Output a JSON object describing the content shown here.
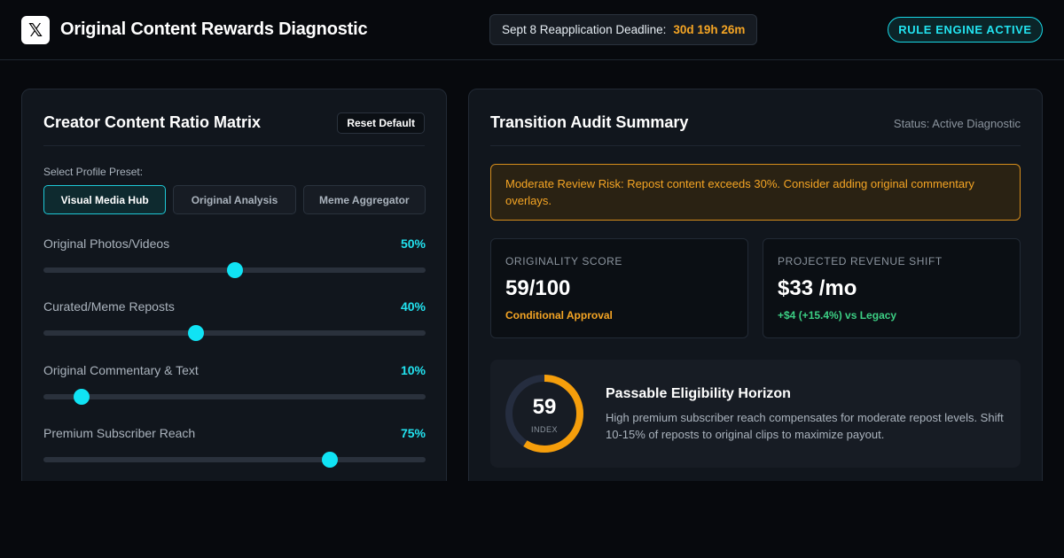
{
  "header": {
    "logo_glyph": "𝕏",
    "title": "Original Content Rewards Diagnostic",
    "deadline_label": "Sept 8 Reapplication Deadline:",
    "deadline_timer": "30d 19h 26m",
    "engine_badge": "RULE ENGINE ACTIVE"
  },
  "matrix": {
    "title": "Creator Content Ratio Matrix",
    "reset_label": "Reset Default",
    "preset_label": "Select Profile Preset:",
    "presets": [
      {
        "label": "Visual Media Hub",
        "active": true
      },
      {
        "label": "Original Analysis",
        "active": false
      },
      {
        "label": "Meme Aggregator",
        "active": false
      }
    ],
    "sliders": [
      {
        "label": "Original Photos/Videos",
        "display": "50%",
        "value": 50
      },
      {
        "label": "Curated/Meme Reposts",
        "display": "40%",
        "value": 40
      },
      {
        "label": "Original Commentary & Text",
        "display": "10%",
        "value": 10
      },
      {
        "label": "Premium Subscriber Reach",
        "display": "75%",
        "value": 75
      }
    ]
  },
  "audit": {
    "title": "Transition Audit Summary",
    "status": "Status: Active Diagnostic",
    "alert": "Moderate Review Risk: Repost content exceeds 30%. Consider adding original commentary overlays.",
    "originality": {
      "label": "ORIGINALITY SCORE",
      "value": "59/100",
      "verdict": "Conditional Approval"
    },
    "revenue": {
      "label": "PROJECTED REVENUE SHIFT",
      "value": "$33 /mo",
      "delta": "+$4 (+15.4%) vs Legacy"
    },
    "horizon": {
      "gauge_value": "59",
      "gauge_level": 59,
      "gauge_caption": "INDEX",
      "title": "Passable Eligibility Horizon",
      "body": "High premium subscriber reach compensates for moderate repost levels. Shift 10-15% of reposts to original clips to maximize payout."
    }
  },
  "colors": {
    "accent_cyan": "#22e3f0",
    "warning_orange": "#f5a524",
    "success_green": "#3ccf84",
    "gauge_track": "#252d3f"
  }
}
